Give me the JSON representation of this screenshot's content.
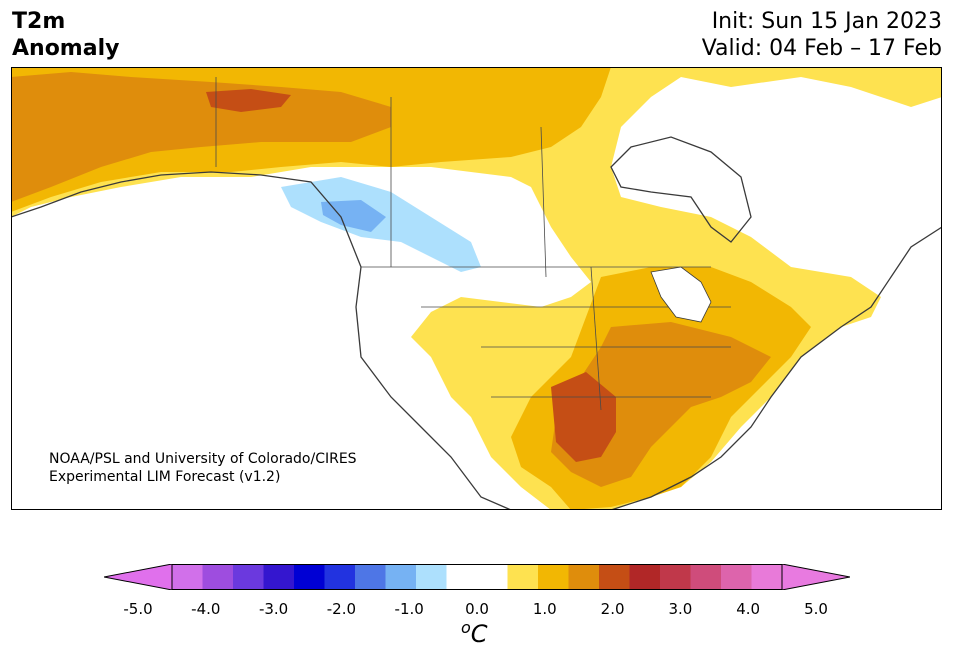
{
  "title": {
    "left_line1": "T2m",
    "left_line2": "Anomaly",
    "init": "Init: Sun 15 Jan 2023",
    "valid": "Valid: 04 Feb – 17 Feb"
  },
  "credit": {
    "line1": "NOAA/PSL and University of Colorado/CIRES",
    "line2": "Experimental LIM Forecast (v1.2)"
  },
  "colorbar": {
    "unit_super": "o",
    "unit": "C",
    "tick_labels": [
      "-5.0",
      "-4.0",
      "-3.0",
      "-2.0",
      "-1.0",
      "0.0",
      "1.0",
      "2.0",
      "3.0",
      "4.0",
      "5.0"
    ],
    "colors": [
      "#d170ea",
      "#9e4ddf",
      "#6b39de",
      "#3416cf",
      "#0000d4",
      "#2233e0",
      "#4e76e6",
      "#76b2f3",
      "#ade0fd",
      "#ffffff",
      "#ffffff",
      "#fee250",
      "#f2b703",
      "#df8d0c",
      "#c54e15",
      "#b12727",
      "#c0384a",
      "#cf4c7b",
      "#dd64ac",
      "#e87ad9"
    ],
    "under_color": "#e070ec",
    "over_color": "#e87ae0"
  },
  "map": {
    "description_colors": {
      "positive_1": "#fee250",
      "positive_2": "#f2b703",
      "positive_3": "#df8d0c",
      "positive_4": "#c54e15",
      "negative_1": "#ade0fd",
      "negative_2": "#76b2f3"
    }
  }
}
